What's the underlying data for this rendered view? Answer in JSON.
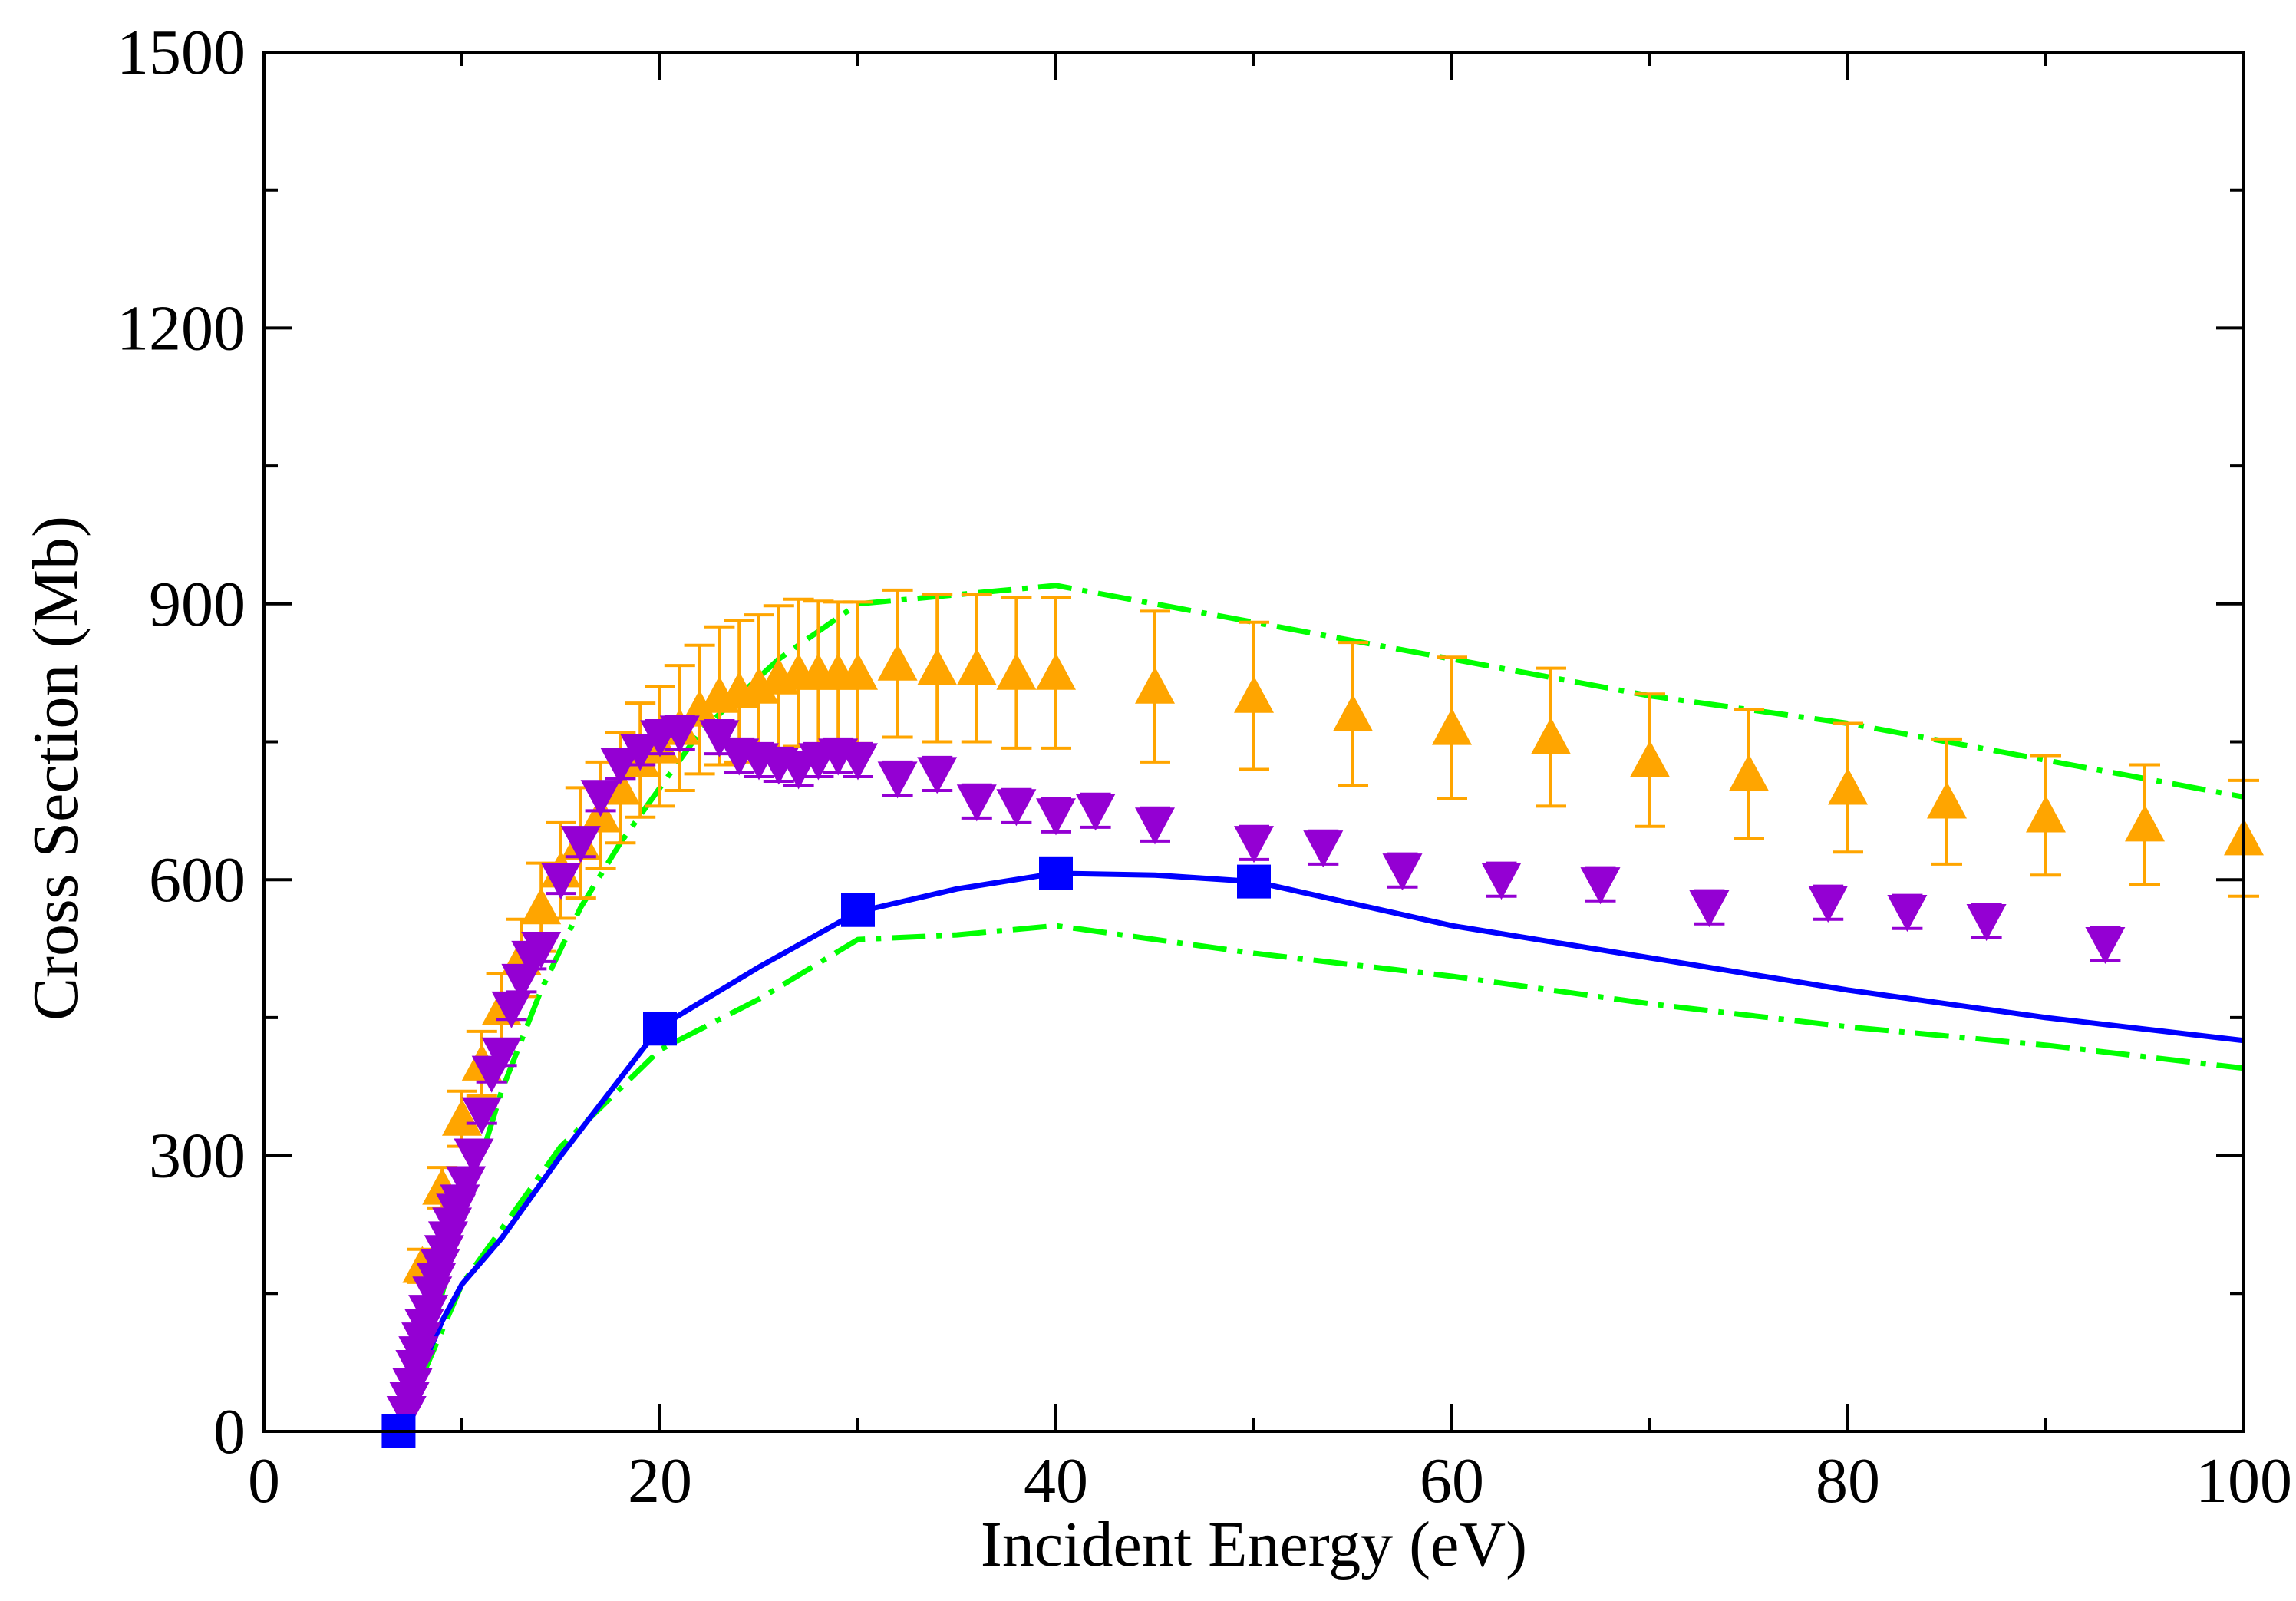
{
  "chart_data": {
    "type": "scatter",
    "xlabel": "Incident Energy (eV)",
    "ylabel": "Cross Section (Mb)",
    "xlim": [
      0,
      100
    ],
    "ylim": [
      0,
      1500
    ],
    "xticks": [
      0,
      20,
      40,
      60,
      80,
      100
    ],
    "yticks": [
      0,
      300,
      600,
      900,
      1200,
      1500
    ],
    "grid": false,
    "legend": "none",
    "colors": {
      "orange": "#ffa500",
      "purple": "#9400d3",
      "blue": "#0000ff",
      "green": "#00ff00",
      "axis": "#000000"
    },
    "series": [
      {
        "name": "upper-dash-dot-curve",
        "kind": "line",
        "style": "dash-dot",
        "color": "#00ff00",
        "x": [
          7.0,
          8.0,
          9.0,
          10.0,
          12.0,
          14.0,
          16.0,
          18.0,
          20.0,
          22.0,
          24.0,
          26.0,
          28.0,
          30.0,
          35.0,
          40.0,
          50.0,
          60.0,
          70.0,
          80.0,
          90.0,
          100.0
        ],
        "y": [
          0,
          60,
          150,
          230,
          370,
          480,
          570,
          640,
          700,
          760,
          800,
          840,
          870,
          900,
          910,
          920,
          880,
          840,
          800,
          770,
          730,
          690
        ]
      },
      {
        "name": "lower-dash-dot-curve",
        "kind": "line",
        "style": "dash-dot",
        "color": "#00ff00",
        "x": [
          7.0,
          8.0,
          10.0,
          12.0,
          15.0,
          20.0,
          25.0,
          30.0,
          35.0,
          40.0,
          50.0,
          60.0,
          70.0,
          80.0,
          90.0,
          100.0
        ],
        "y": [
          0,
          60,
          160,
          220,
          310,
          415,
          470,
          535,
          540,
          550,
          520,
          495,
          465,
          440,
          420,
          395
        ]
      },
      {
        "name": "blue-solid-curve",
        "kind": "line",
        "style": "solid",
        "color": "#0000ff",
        "x": [
          7.0,
          8.0,
          9.0,
          10.0,
          12.0,
          15.0,
          20.0,
          25.0,
          30.0,
          35.0,
          40.0,
          45.0,
          50.0,
          60.0,
          70.0,
          80.0,
          90.0,
          100.0
        ],
        "y": [
          0,
          70,
          120,
          160,
          210,
          300,
          440,
          505,
          565,
          590,
          607,
          605,
          598,
          550,
          515,
          480,
          450,
          425
        ]
      },
      {
        "name": "blue-squares",
        "kind": "marker",
        "marker": "square",
        "color": "#0000ff",
        "x": [
          6.8,
          20.0,
          30.0,
          40.0,
          50.0
        ],
        "y": [
          0,
          438,
          567,
          607,
          598
        ]
      },
      {
        "name": "orange-triangles",
        "kind": "marker",
        "marker": "triangle-up",
        "color": "#ffa500",
        "x": [
          8.0,
          9.0,
          10.0,
          11.0,
          12.0,
          13.0,
          14.0,
          15.0,
          16.0,
          17.0,
          18.0,
          19.0,
          20.0,
          21.0,
          22.0,
          23.0,
          24.0,
          25.0,
          26.0,
          27.0,
          28.0,
          29.0,
          30.0,
          32.0,
          34.0,
          36.0,
          38.0,
          40.0,
          45.0,
          50.0,
          55.0,
          60.0,
          65.0,
          70.0,
          75.0,
          80.0,
          85.0,
          90.0,
          95.0,
          100.0
        ],
        "y": [
          180,
          265,
          340,
          400,
          460,
          515,
          570,
          610,
          640,
          670,
          700,
          730,
          745,
          765,
          785,
          800,
          805,
          810,
          820,
          825,
          825,
          825,
          825,
          835,
          830,
          830,
          825,
          825,
          810,
          800,
          780,
          765,
          755,
          730,
          715,
          700,
          685,
          670,
          660,
          645
        ],
        "err": [
          18,
          22,
          30,
          35,
          38,
          42,
          48,
          52,
          60,
          58,
          60,
          62,
          65,
          68,
          70,
          75,
          77,
          78,
          78,
          80,
          78,
          77,
          77,
          80,
          80,
          80,
          82,
          82,
          82,
          80,
          78,
          77,
          75,
          72,
          70,
          70,
          68,
          65,
          65,
          63
        ]
      },
      {
        "name": "purple-triangles",
        "kind": "marker",
        "marker": "triangle-down",
        "color": "#9400d3",
        "x": [
          7.2,
          7.35,
          7.5,
          7.65,
          7.8,
          7.95,
          8.1,
          8.3,
          8.5,
          8.7,
          8.9,
          9.1,
          9.3,
          9.5,
          9.7,
          9.9,
          10.2,
          10.6,
          11.0,
          11.5,
          12.0,
          12.5,
          13.0,
          13.5,
          14.0,
          15.0,
          16.0,
          17.0,
          18.0,
          19.0,
          20.0,
          21.0,
          23.0,
          24.0,
          25.0,
          26.0,
          27.0,
          28.0,
          29.0,
          30.0,
          32.0,
          34.0,
          36.0,
          38.0,
          40.0,
          42.0,
          45.0,
          50.0,
          53.5,
          57.5,
          62.5,
          67.5,
          73.0,
          79.0,
          83.0,
          87.0,
          93.0
        ],
        "y": [
          20,
          35,
          50,
          70,
          85,
          100,
          115,
          130,
          150,
          165,
          180,
          195,
          210,
          225,
          240,
          250,
          270,
          300,
          345,
          390,
          410,
          460,
          490,
          515,
          525,
          600,
          640,
          690,
          725,
          740,
          755,
          760,
          755,
          735,
          730,
          725,
          720,
          730,
          735,
          730,
          710,
          715,
          685,
          680,
          670,
          675,
          660,
          640,
          635,
          610,
          600,
          595,
          570,
          575,
          565,
          555,
          530
        ],
        "err": [
          0,
          0,
          0,
          0,
          0,
          0,
          0,
          0,
          0,
          0,
          0,
          0,
          0,
          0,
          0,
          0,
          0,
          0,
          10,
          10,
          12,
          12,
          12,
          12,
          14,
          15,
          15,
          15,
          15,
          15,
          18,
          18,
          18,
          18,
          18,
          18,
          18,
          18,
          18,
          18,
          18,
          18,
          18,
          18,
          18,
          18,
          18,
          18,
          18,
          18,
          18,
          18,
          18,
          18,
          18,
          18,
          18
        ]
      }
    ]
  }
}
